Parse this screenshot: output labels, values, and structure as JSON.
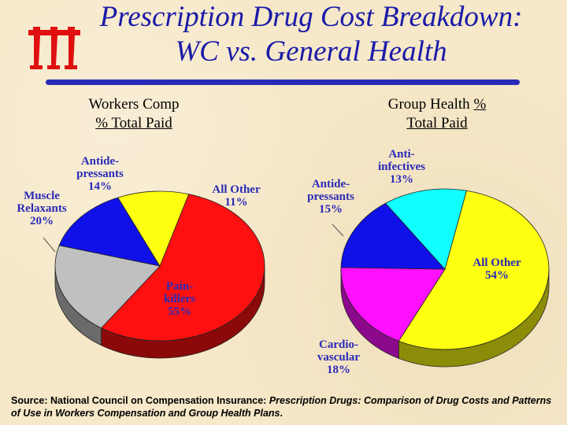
{
  "title_line1": "Prescription Drug Cost Breakdown:",
  "title_line2": "WC vs. General Health",
  "logo": "iii-logo",
  "chart_data": [
    {
      "type": "pie",
      "title_line1": "Workers Comp",
      "title_line2": "% Total Paid",
      "slices": [
        {
          "label": [
            "Pain-",
            "killers"
          ],
          "value": 55,
          "value_label": "55%",
          "color": "#ff1010"
        },
        {
          "label": [
            "Muscle",
            "Relaxants"
          ],
          "value": 20,
          "value_label": "20%",
          "color": "#c0c0c0"
        },
        {
          "label": [
            "Antide-",
            "pressants"
          ],
          "value": 14,
          "value_label": "14%",
          "color": "#1010e8"
        },
        {
          "label": [
            "All Other"
          ],
          "value": 11,
          "value_label": "11%",
          "color": "#ffff10"
        }
      ]
    },
    {
      "type": "pie",
      "title_line1": "Group Health %",
      "title_line2": "Total Paid",
      "slices": [
        {
          "label": [
            "All Other"
          ],
          "value": 54,
          "value_label": "54%",
          "color": "#ffff10"
        },
        {
          "label": [
            "Cardio-",
            "vascular"
          ],
          "value": 18,
          "value_label": "18%",
          "color": "#ff10ff"
        },
        {
          "label": [
            "Antide-",
            "pressants"
          ],
          "value": 15,
          "value_label": "15%",
          "color": "#1010e8"
        },
        {
          "label": [
            "Anti-",
            "infectives"
          ],
          "value": 13,
          "value_label": "13%",
          "color": "#10ffff"
        }
      ]
    }
  ],
  "source": {
    "prefix": "Source: National Council on Compensation Insurance: ",
    "italic": "Prescription Drugs: Comparison of Drug Costs and Patterns of Use in Workers Compensation and Group Health Plans",
    "suffix": "."
  }
}
